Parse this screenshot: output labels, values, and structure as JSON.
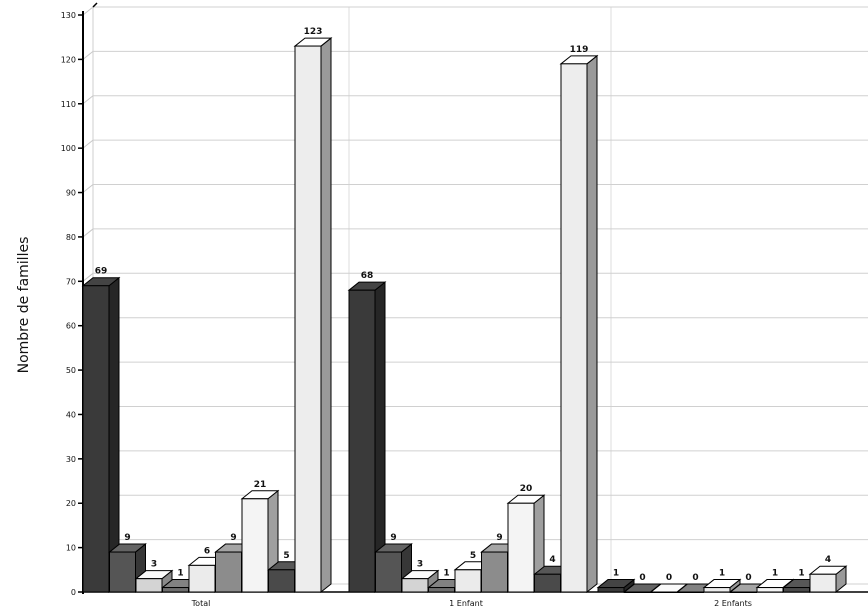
{
  "chart_data": {
    "type": "bar",
    "ylabel": "Nombre de familles",
    "ylim": [
      0,
      130
    ],
    "yticks": [
      0,
      10,
      20,
      30,
      40,
      50,
      60,
      70,
      80,
      90,
      100,
      110,
      120,
      130
    ],
    "categories": [
      "Total",
      "1 Enfant",
      "2 Enfants"
    ],
    "series_count": 9,
    "values": [
      [
        69,
        9,
        3,
        1,
        6,
        9,
        21,
        5,
        123
      ],
      [
        68,
        9,
        3,
        1,
        5,
        9,
        20,
        4,
        119
      ],
      [
        1,
        0,
        0,
        0,
        1,
        0,
        1,
        1,
        4
      ]
    ],
    "grid": true,
    "colors": [
      "#3a3a3a",
      "#555555",
      "#d4d4d4",
      "#6e6e6e",
      "#ebebeb",
      "#8c8c8c",
      "#f4f4f4",
      "#4a4a4a",
      "#ededed"
    ]
  }
}
